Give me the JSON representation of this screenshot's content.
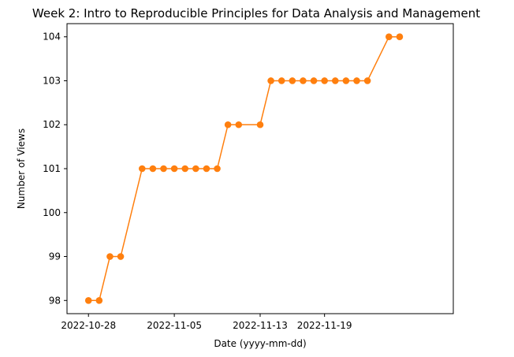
{
  "chart_data": {
    "type": "line",
    "title": "Week 2: Intro to Reproducible Principles for Data Analysis and Management",
    "xlabel": "Date (yyyy-mm-dd)",
    "ylabel": "Number of Views",
    "x_scale": "date",
    "xlim": [
      "2022-10-26",
      "2022-12-01"
    ],
    "ylim": [
      97.7,
      104.3
    ],
    "xticks": [
      "2022-10-28",
      "2022-11-05",
      "2022-11-13",
      "2022-11-19"
    ],
    "yticks": [
      98,
      99,
      100,
      101,
      102,
      103,
      104
    ],
    "grid": false,
    "series": [
      {
        "color": "#ff7f0e",
        "marker": "circle",
        "x": [
          "2022-10-28",
          "2022-10-29",
          "2022-10-30",
          "2022-10-31",
          "2022-11-02",
          "2022-11-03",
          "2022-11-04",
          "2022-11-05",
          "2022-11-06",
          "2022-11-07",
          "2022-11-08",
          "2022-11-09",
          "2022-11-10",
          "2022-11-11",
          "2022-11-13",
          "2022-11-14",
          "2022-11-15",
          "2022-11-16",
          "2022-11-17",
          "2022-11-18",
          "2022-11-19",
          "2022-11-20",
          "2022-11-21",
          "2022-11-22",
          "2022-11-23",
          "2022-11-25",
          "2022-11-26"
        ],
        "y": [
          98,
          98,
          99,
          99,
          101,
          101,
          101,
          101,
          101,
          101,
          101,
          101,
          102,
          102,
          102,
          103,
          103,
          103,
          103,
          103,
          103,
          103,
          103,
          103,
          103,
          104,
          104
        ]
      }
    ]
  }
}
